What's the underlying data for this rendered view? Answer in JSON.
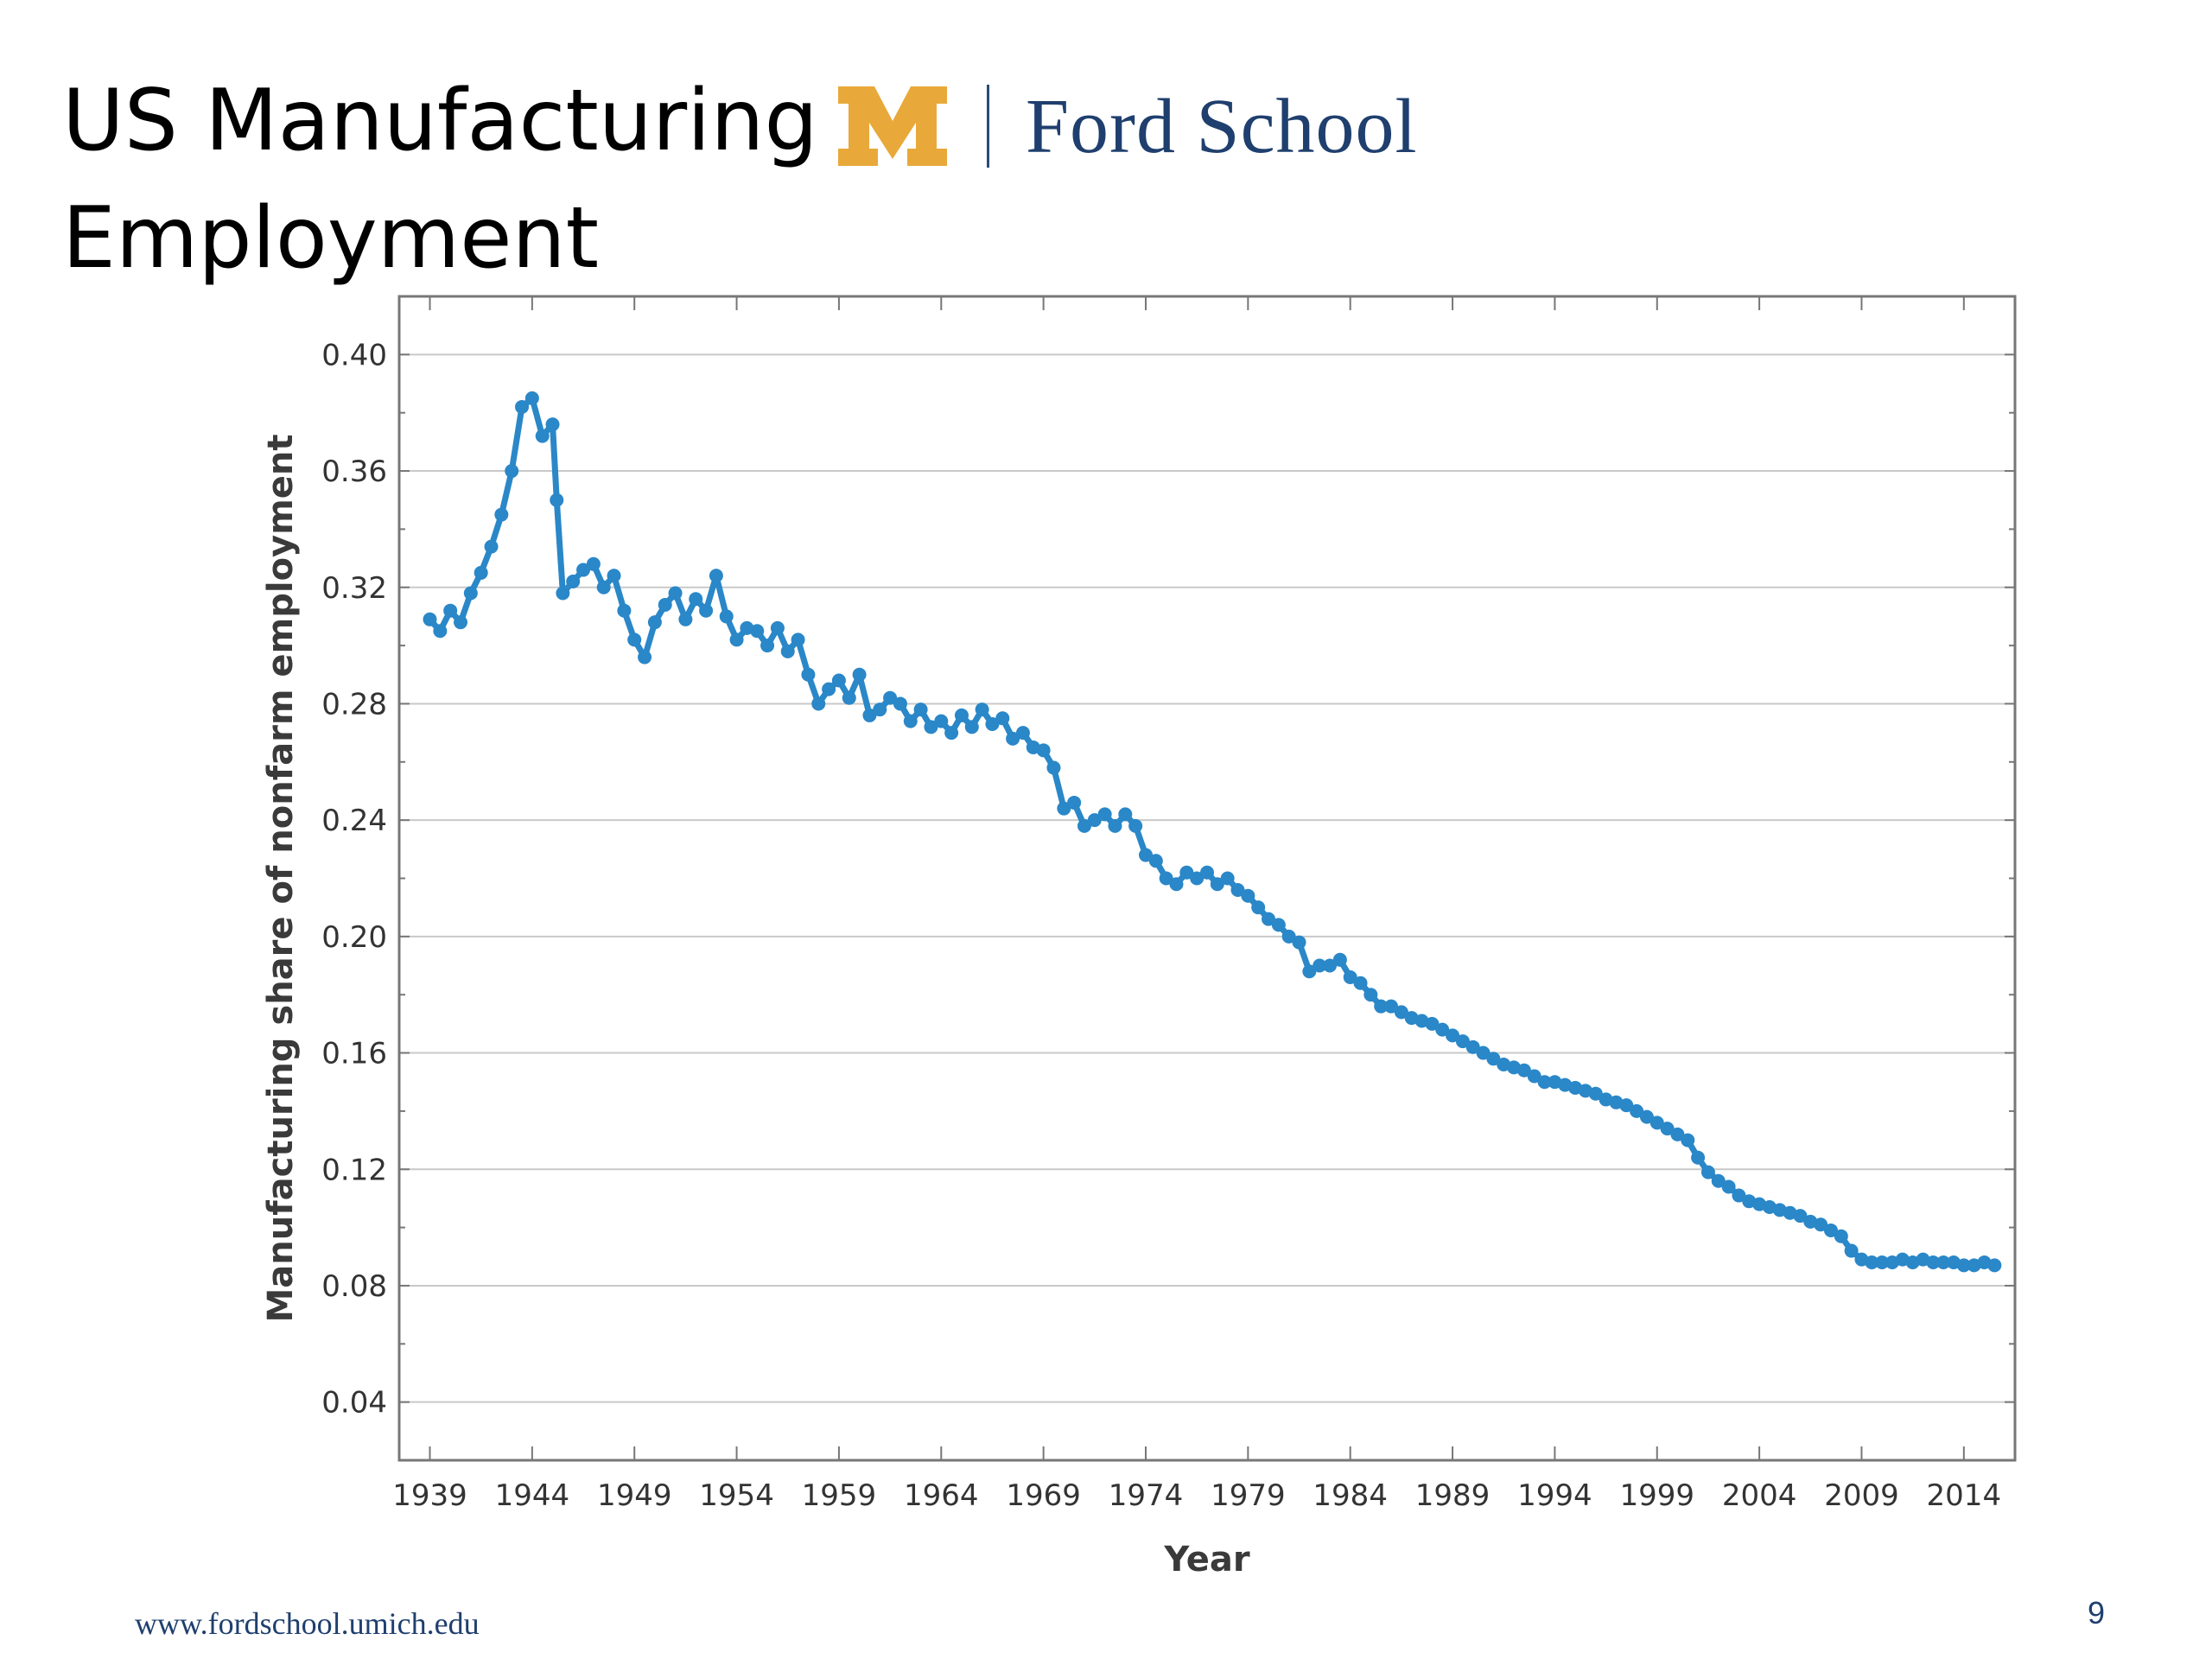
{
  "slide": {
    "title_line1": "US Manufacturing",
    "title_line2": "Employment",
    "logo_text": "Ford School",
    "logo_mark": "M",
    "footer_url": "www.fordschool.umich.edu",
    "page_number": "9"
  },
  "colors": {
    "series": "#2a87c8",
    "logo_maize": "#e8a93a",
    "logo_blue": "#1f3f6e",
    "grid": "#c9c9c9",
    "frame": "#777777"
  },
  "chart_data": {
    "type": "line",
    "title": "",
    "xlabel": "Year",
    "ylabel": "Manufacturing share of nonfarm employment",
    "xlim": [
      1937.5,
      2016.5
    ],
    "ylim": [
      0.02,
      0.42
    ],
    "xticks": [
      1939,
      1944,
      1949,
      1954,
      1959,
      1964,
      1969,
      1974,
      1979,
      1984,
      1989,
      1994,
      1999,
      2004,
      2009,
      2014
    ],
    "xtick_labels": [
      "1939",
      "1944",
      "1949",
      "1954",
      "1959",
      "1964",
      "1969",
      "1974",
      "1979",
      "1984",
      "1989",
      "1994",
      "1999",
      "2004",
      "2009",
      "2014"
    ],
    "yticks": [
      0.04,
      0.08,
      0.12,
      0.16,
      0.2,
      0.24,
      0.28,
      0.32,
      0.36,
      0.4
    ],
    "ytick_labels": [
      "0.04",
      "0.08",
      "0.12",
      "0.16",
      "0.20",
      "0.24",
      "0.28",
      "0.32",
      "0.36",
      "0.40"
    ],
    "grid": "horizontal",
    "legend": "none",
    "markers": "circle",
    "series": [
      {
        "x": [
          1939.0,
          1939.5,
          1940.0,
          1940.5,
          1941.0,
          1941.5,
          1942.0,
          1942.5,
          1943.0,
          1943.5,
          1944.0,
          1944.5,
          1945.0,
          1945.2,
          1945.5,
          1946.0,
          1946.5,
          1947.0,
          1947.5,
          1948.0,
          1948.5,
          1949.0,
          1949.5,
          1950.0,
          1950.5,
          1951.0,
          1951.5,
          1952.0,
          1952.5,
          1953.0,
          1953.5,
          1954.0,
          1954.5,
          1955.0,
          1955.5,
          1956.0,
          1956.5,
          1957.0,
          1957.5,
          1958.0,
          1958.5,
          1959.0,
          1959.5,
          1960.0,
          1960.5,
          1961.0,
          1961.5,
          1962.0,
          1962.5,
          1963.0,
          1963.5,
          1964.0,
          1964.5,
          1965.0,
          1965.5,
          1966.0,
          1966.5,
          1967.0,
          1967.5,
          1968.0,
          1968.5,
          1969.0,
          1969.5,
          1970.0,
          1970.5,
          1971.0,
          1971.5,
          1972.0,
          1972.5,
          1973.0,
          1973.5,
          1974.0,
          1974.5,
          1975.0,
          1975.5,
          1976.0,
          1976.5,
          1977.0,
          1977.5,
          1978.0,
          1978.5,
          1979.0,
          1979.5,
          1980.0,
          1980.5,
          1981.0,
          1981.5,
          1982.0,
          1982.5,
          1983.0,
          1983.5,
          1984.0,
          1984.5,
          1985.0,
          1985.5,
          1986.0,
          1986.5,
          1987.0,
          1987.5,
          1988.0,
          1988.5,
          1989.0,
          1989.5,
          1990.0,
          1990.5,
          1991.0,
          1991.5,
          1992.0,
          1992.5,
          1993.0,
          1993.5,
          1994.0,
          1994.5,
          1995.0,
          1995.5,
          1996.0,
          1996.5,
          1997.0,
          1997.5,
          1998.0,
          1998.5,
          1999.0,
          1999.5,
          2000.0,
          2000.5,
          2001.0,
          2001.5,
          2002.0,
          2002.5,
          2003.0,
          2003.5,
          2004.0,
          2004.5,
          2005.0,
          2005.5,
          2006.0,
          2006.5,
          2007.0,
          2007.5,
          2008.0,
          2008.5,
          2009.0,
          2009.5,
          2010.0,
          2010.5,
          2011.0,
          2011.5,
          2012.0,
          2012.5,
          2013.0,
          2013.5,
          2014.0,
          2014.5,
          2015.0,
          2015.5
        ],
        "y": [
          0.309,
          0.305,
          0.312,
          0.308,
          0.318,
          0.325,
          0.334,
          0.345,
          0.36,
          0.382,
          0.385,
          0.372,
          0.376,
          0.35,
          0.318,
          0.322,
          0.326,
          0.328,
          0.32,
          0.324,
          0.312,
          0.302,
          0.296,
          0.308,
          0.314,
          0.318,
          0.309,
          0.316,
          0.312,
          0.324,
          0.31,
          0.302,
          0.306,
          0.305,
          0.3,
          0.306,
          0.298,
          0.302,
          0.29,
          0.28,
          0.285,
          0.288,
          0.282,
          0.29,
          0.276,
          0.278,
          0.282,
          0.28,
          0.274,
          0.278,
          0.272,
          0.274,
          0.27,
          0.276,
          0.272,
          0.278,
          0.273,
          0.275,
          0.268,
          0.27,
          0.265,
          0.264,
          0.258,
          0.244,
          0.246,
          0.238,
          0.24,
          0.242,
          0.238,
          0.242,
          0.238,
          0.228,
          0.226,
          0.22,
          0.218,
          0.222,
          0.22,
          0.222,
          0.218,
          0.22,
          0.216,
          0.214,
          0.21,
          0.206,
          0.204,
          0.2,
          0.198,
          0.188,
          0.19,
          0.19,
          0.192,
          0.186,
          0.184,
          0.18,
          0.176,
          0.176,
          0.174,
          0.172,
          0.171,
          0.17,
          0.168,
          0.166,
          0.164,
          0.162,
          0.16,
          0.158,
          0.156,
          0.155,
          0.154,
          0.152,
          0.15,
          0.15,
          0.149,
          0.148,
          0.147,
          0.146,
          0.144,
          0.143,
          0.142,
          0.14,
          0.138,
          0.136,
          0.134,
          0.132,
          0.13,
          0.124,
          0.119,
          0.116,
          0.114,
          0.111,
          0.109,
          0.108,
          0.107,
          0.106,
          0.105,
          0.104,
          0.102,
          0.101,
          0.099,
          0.097,
          0.092,
          0.089,
          0.088,
          0.088,
          0.088,
          0.089,
          0.088,
          0.089,
          0.088,
          0.088,
          0.088,
          0.087,
          0.087,
          0.088,
          0.087
        ]
      }
    ]
  }
}
